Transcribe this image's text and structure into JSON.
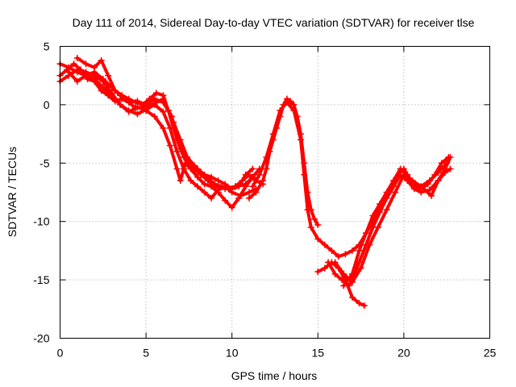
{
  "chart_data": {
    "type": "scatter",
    "title": "Day 111 of 2014, Sidereal Day-to-day VTEC variation (SDTVAR) for receiver tlse",
    "xlabel": "GPS time / hours",
    "ylabel": "SDTVAR / TECUs",
    "xlim": [
      0,
      25
    ],
    "ylim": [
      -20,
      5
    ],
    "xticks": [
      0,
      5,
      10,
      15,
      20,
      25
    ],
    "yticks": [
      -20,
      -15,
      -10,
      -5,
      0,
      5
    ],
    "grid": true,
    "legend": "none",
    "marker": "+",
    "series": [
      {
        "color": "#ff0000",
        "points": [
          [
            0.0,
            2.5
          ],
          [
            0.4,
            3.0
          ],
          [
            0.8,
            3.5
          ],
          [
            1.2,
            3.0
          ],
          [
            1.6,
            2.2
          ],
          [
            2.0,
            2.0
          ],
          [
            2.4,
            1.2
          ],
          [
            2.8,
            0.8
          ],
          [
            3.2,
            0.3
          ],
          [
            3.6,
            0.5
          ],
          [
            4.0,
            0.2
          ],
          [
            4.4,
            -0.3
          ],
          [
            4.8,
            -0.2
          ],
          [
            5.2,
            -0.1
          ],
          [
            5.6,
            0.2
          ],
          [
            6.0,
            0.5
          ],
          [
            6.3,
            -0.5
          ],
          [
            6.6,
            -1.5
          ],
          [
            7.0,
            -3.0
          ],
          [
            7.4,
            -4.5
          ],
          [
            7.8,
            -5.2
          ],
          [
            8.2,
            -5.8
          ],
          [
            8.6,
            -6.3
          ],
          [
            9.0,
            -6.8
          ],
          [
            9.4,
            -7.0
          ],
          [
            9.8,
            -7.2
          ],
          [
            10.2,
            -7.0
          ],
          [
            10.6,
            -6.5
          ],
          [
            11.0,
            -6.0
          ],
          [
            11.4,
            -6.5
          ],
          [
            11.8,
            -6.8
          ]
        ]
      },
      {
        "color": "#ff0000",
        "points": [
          [
            0.0,
            2.0
          ],
          [
            0.5,
            2.5
          ],
          [
            1.0,
            3.0
          ],
          [
            1.5,
            2.8
          ],
          [
            2.0,
            2.5
          ],
          [
            2.5,
            2.0
          ],
          [
            3.0,
            1.0
          ],
          [
            3.5,
            0.0
          ],
          [
            4.0,
            -0.5
          ],
          [
            4.5,
            -0.8
          ],
          [
            5.0,
            -0.4
          ],
          [
            5.5,
            0.0
          ],
          [
            6.0,
            -0.6
          ],
          [
            6.4,
            -2.0
          ],
          [
            6.8,
            -4.0
          ],
          [
            7.2,
            -5.5
          ],
          [
            7.6,
            -6.5
          ],
          [
            8.0,
            -7.0
          ],
          [
            8.4,
            -7.5
          ],
          [
            8.8,
            -8.0
          ],
          [
            9.2,
            -7.3
          ],
          [
            9.6,
            -7.0
          ],
          [
            10.0,
            -7.5
          ],
          [
            10.5,
            -7.8
          ],
          [
            11.0,
            -7.5
          ],
          [
            11.4,
            -7.2
          ]
        ]
      },
      {
        "color": "#ff0000",
        "points": [
          [
            0.0,
            3.5
          ],
          [
            0.5,
            3.2
          ],
          [
            1.0,
            2.8
          ],
          [
            1.5,
            2.5
          ],
          [
            2.0,
            2.2
          ],
          [
            2.5,
            1.5
          ],
          [
            3.0,
            0.8
          ],
          [
            3.5,
            0.0
          ],
          [
            4.0,
            -0.6
          ],
          [
            4.5,
            -0.2
          ],
          [
            5.0,
            -0.5
          ],
          [
            5.5,
            -1.0
          ],
          [
            6.0,
            -2.0
          ],
          [
            6.4,
            -3.5
          ],
          [
            6.8,
            -5.5
          ],
          [
            7.0,
            -6.5
          ],
          [
            7.3,
            -5.0
          ],
          [
            7.6,
            -5.5
          ],
          [
            8.0,
            -6.2
          ],
          [
            8.4,
            -6.8
          ],
          [
            8.8,
            -7.0
          ],
          [
            9.2,
            -7.5
          ],
          [
            9.6,
            -8.2
          ],
          [
            10.0,
            -8.8
          ],
          [
            10.4,
            -8.0
          ],
          [
            10.8,
            -7.0
          ],
          [
            11.2,
            -6.2
          ],
          [
            11.6,
            -5.5
          ]
        ]
      },
      {
        "color": "#ff0000",
        "points": [
          [
            0.5,
            2.8
          ],
          [
            1.0,
            2.0
          ],
          [
            1.5,
            2.5
          ],
          [
            2.0,
            2.8
          ],
          [
            2.5,
            2.2
          ],
          [
            3.0,
            1.5
          ],
          [
            3.5,
            0.8
          ],
          [
            4.0,
            0.2
          ],
          [
            4.5,
            0.3
          ],
          [
            5.0,
            0.0
          ],
          [
            5.5,
            0.5
          ],
          [
            6.0,
            0.2
          ],
          [
            6.5,
            -1.0
          ],
          [
            6.8,
            -3.0
          ],
          [
            7.2,
            -4.5
          ],
          [
            7.6,
            -5.0
          ],
          [
            8.0,
            -5.5
          ],
          [
            8.4,
            -6.0
          ],
          [
            8.8,
            -6.2
          ],
          [
            9.2,
            -6.5
          ],
          [
            9.6,
            -6.8
          ],
          [
            10.0,
            -7.2
          ],
          [
            10.4,
            -7.0
          ],
          [
            10.8,
            -6.0
          ],
          [
            11.2,
            -5.5
          ]
        ]
      },
      {
        "color": "#ff0000",
        "points": [
          [
            1.0,
            4.0
          ],
          [
            1.5,
            3.5
          ],
          [
            2.0,
            3.2
          ],
          [
            2.4,
            3.8
          ],
          [
            2.8,
            2.5
          ],
          [
            3.2,
            1.2
          ],
          [
            3.6,
            0.8
          ],
          [
            4.0,
            0.5
          ],
          [
            4.4,
            0.2
          ],
          [
            4.8,
            0.0
          ],
          [
            5.2,
            0.5
          ],
          [
            5.6,
            1.0
          ],
          [
            6.0,
            0.8
          ],
          [
            6.3,
            -0.5
          ],
          [
            6.6,
            -2.0
          ],
          [
            7.0,
            -3.8
          ],
          [
            7.4,
            -4.8
          ],
          [
            7.8,
            -5.5
          ],
          [
            8.2,
            -6.0
          ],
          [
            8.6,
            -6.5
          ],
          [
            9.0,
            -7.0
          ],
          [
            9.6,
            -7.2
          ],
          [
            10.2,
            -7.0
          ],
          [
            10.8,
            -6.8
          ],
          [
            11.2,
            -6.2
          ]
        ]
      },
      {
        "color": "#ff0000",
        "points": [
          [
            11.0,
            -8.0
          ],
          [
            11.4,
            -7.5
          ],
          [
            11.8,
            -6.5
          ],
          [
            12.0,
            -5.5
          ],
          [
            12.2,
            -4.0
          ],
          [
            12.4,
            -3.0
          ],
          [
            12.6,
            -2.0
          ],
          [
            12.8,
            -1.0
          ],
          [
            13.0,
            0.0
          ],
          [
            13.2,
            0.5
          ],
          [
            13.4,
            0.3
          ],
          [
            13.6,
            0.0
          ],
          [
            13.8,
            -1.0
          ],
          [
            14.0,
            -2.5
          ],
          [
            14.2,
            -5.0
          ],
          [
            14.4,
            -7.5
          ],
          [
            14.6,
            -9.0
          ],
          [
            14.8,
            -9.8
          ],
          [
            15.0,
            -10.3
          ]
        ]
      },
      {
        "color": "#ff0000",
        "points": [
          [
            11.2,
            -7.0
          ],
          [
            11.6,
            -6.0
          ],
          [
            12.0,
            -4.5
          ],
          [
            12.4,
            -2.5
          ],
          [
            12.8,
            -0.5
          ],
          [
            13.2,
            0.2
          ],
          [
            13.6,
            -0.5
          ],
          [
            14.0,
            -3.0
          ],
          [
            14.2,
            -6.0
          ],
          [
            14.4,
            -9.0
          ],
          [
            14.6,
            -10.5
          ],
          [
            15.0,
            -11.5
          ],
          [
            15.4,
            -12.0
          ],
          [
            15.8,
            -12.5
          ],
          [
            16.2,
            -13.0
          ],
          [
            16.6,
            -12.8
          ],
          [
            17.0,
            -12.5
          ],
          [
            17.4,
            -12.0
          ],
          [
            17.8,
            -11.0
          ],
          [
            18.2,
            -10.0
          ],
          [
            18.6,
            -9.0
          ],
          [
            19.0,
            -8.0
          ],
          [
            19.4,
            -7.0
          ],
          [
            19.8,
            -5.8
          ],
          [
            20.0,
            -5.5
          ],
          [
            20.2,
            -6.0
          ],
          [
            20.6,
            -7.0
          ],
          [
            21.0,
            -7.2
          ],
          [
            21.4,
            -6.8
          ],
          [
            21.8,
            -6.0
          ],
          [
            22.2,
            -5.0
          ],
          [
            22.6,
            -4.5
          ]
        ]
      },
      {
        "color": "#ff0000",
        "points": [
          [
            15.0,
            -14.3
          ],
          [
            15.4,
            -14.0
          ],
          [
            15.8,
            -13.5
          ],
          [
            16.2,
            -14.0
          ],
          [
            16.6,
            -15.0
          ],
          [
            17.0,
            -16.5
          ],
          [
            17.4,
            -17.0
          ],
          [
            17.7,
            -17.2
          ]
        ]
      },
      {
        "color": "#ff0000",
        "points": [
          [
            15.6,
            -13.5
          ],
          [
            16.0,
            -14.5
          ],
          [
            16.4,
            -15.0
          ],
          [
            16.8,
            -15.5
          ],
          [
            17.0,
            -15.0
          ],
          [
            17.4,
            -13.5
          ],
          [
            17.8,
            -12.0
          ],
          [
            18.2,
            -10.5
          ],
          [
            18.6,
            -9.2
          ],
          [
            19.0,
            -8.0
          ],
          [
            19.4,
            -7.0
          ],
          [
            19.8,
            -6.0
          ],
          [
            20.2,
            -6.5
          ],
          [
            20.6,
            -7.2
          ],
          [
            21.0,
            -7.5
          ],
          [
            21.5,
            -7.3
          ],
          [
            22.0,
            -6.5
          ],
          [
            22.4,
            -5.8
          ],
          [
            22.7,
            -5.5
          ]
        ]
      },
      {
        "color": "#ff0000",
        "points": [
          [
            16.5,
            -15.5
          ],
          [
            17.0,
            -14.5
          ],
          [
            17.4,
            -12.5
          ],
          [
            17.8,
            -11.0
          ],
          [
            18.2,
            -9.5
          ],
          [
            18.6,
            -8.5
          ],
          [
            19.0,
            -7.5
          ],
          [
            19.4,
            -6.5
          ],
          [
            19.8,
            -5.5
          ],
          [
            20.2,
            -6.0
          ],
          [
            20.6,
            -6.8
          ],
          [
            21.0,
            -7.0
          ],
          [
            21.6,
            -7.8
          ],
          [
            22.0,
            -6.5
          ],
          [
            22.4,
            -5.5
          ],
          [
            22.7,
            -4.5
          ]
        ]
      },
      {
        "color": "#ff0000",
        "points": [
          [
            16.0,
            -13.5
          ],
          [
            16.5,
            -14.5
          ],
          [
            17.0,
            -15.2
          ],
          [
            17.5,
            -14.0
          ],
          [
            18.0,
            -12.0
          ],
          [
            18.5,
            -10.5
          ],
          [
            19.0,
            -9.0
          ],
          [
            19.5,
            -7.5
          ],
          [
            20.0,
            -6.0
          ],
          [
            20.5,
            -6.5
          ],
          [
            21.0,
            -7.0
          ],
          [
            21.5,
            -6.5
          ],
          [
            22.0,
            -5.8
          ],
          [
            22.5,
            -5.0
          ]
        ]
      }
    ]
  }
}
